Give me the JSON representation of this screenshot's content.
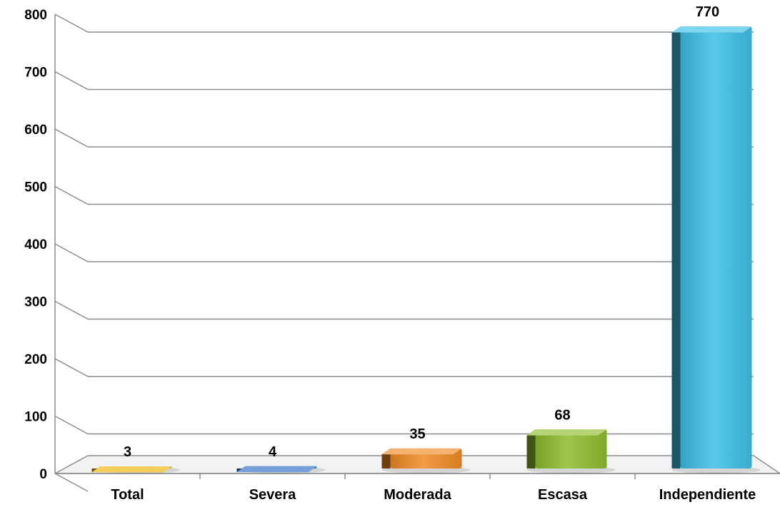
{
  "chart_data": {
    "type": "bar",
    "title": "",
    "xlabel": "",
    "ylabel": "",
    "categories": [
      "Total",
      "Severa",
      "Moderada",
      "Escasa",
      "Independiente"
    ],
    "values": [
      3,
      4,
      35,
      68,
      770
    ],
    "ylim": [
      0,
      800
    ],
    "yticks": [
      "0",
      "100",
      "200",
      "300",
      "400",
      "500",
      "600",
      "700",
      "800"
    ],
    "data_labels": [
      "3",
      "4",
      "35",
      "68",
      "770"
    ],
    "colors": [
      "#f0b400",
      "#2b6cc4",
      "#f08a24",
      "#8ebc2e",
      "#3cc0e6"
    ],
    "grid": true,
    "legend": "none",
    "style": "3d-columns"
  }
}
